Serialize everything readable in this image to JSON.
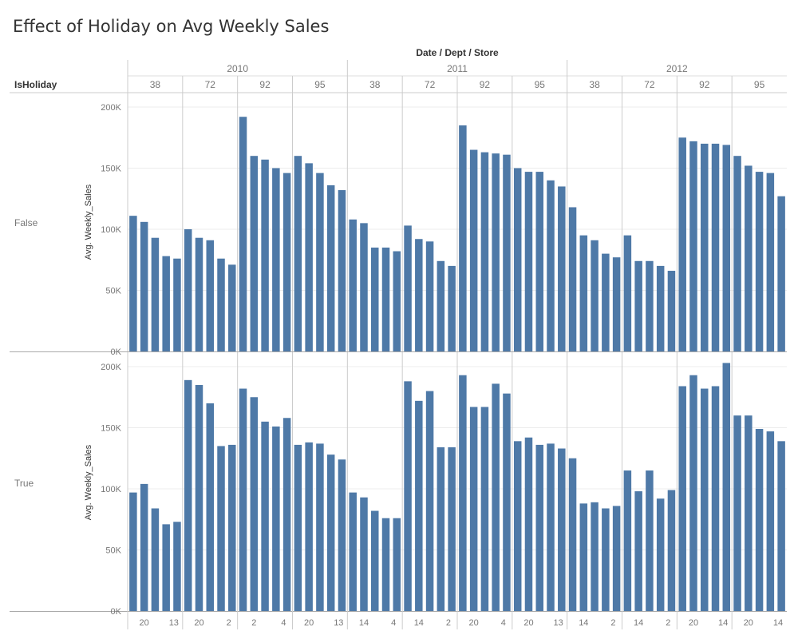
{
  "chart_data": {
    "type": "bar",
    "title": "Effect of Holiday on Avg Weekly Sales",
    "column_header": "Date / Dept / Store",
    "row_header": "IsHoliday",
    "ylabel": "Avg. Weekly_Sales",
    "ylim": [
      0,
      200000
    ],
    "y_ticks": [
      "0K",
      "50K",
      "100K",
      "150K",
      "200K"
    ],
    "bar_color": "#4e79a7",
    "years": [
      {
        "year": "2010",
        "depts": [
          "38",
          "72",
          "92",
          "95"
        ]
      },
      {
        "year": "2011",
        "depts": [
          "38",
          "72",
          "92",
          "95"
        ]
      },
      {
        "year": "2012",
        "depts": [
          "38",
          "72",
          "92",
          "95"
        ]
      }
    ],
    "x_tick_labels": [
      [
        "20",
        "13"
      ],
      [
        "20",
        "2"
      ],
      [
        "2",
        "4"
      ],
      [
        "20",
        "13"
      ],
      [
        "14",
        "4"
      ],
      [
        "14",
        "2"
      ],
      [
        "20",
        "4"
      ],
      [
        "20",
        "13"
      ],
      [
        "14",
        "2"
      ],
      [
        "14",
        "2"
      ],
      [
        "20",
        "14"
      ],
      [
        "20",
        "14"
      ]
    ],
    "series": [
      {
        "name": "False",
        "groups": [
          [
            111000,
            106000,
            93000,
            78000,
            76000
          ],
          [
            100000,
            93000,
            91000,
            76000,
            71000
          ],
          [
            192000,
            160000,
            157000,
            150000,
            146000
          ],
          [
            160000,
            154000,
            146000,
            136000,
            132000
          ],
          [
            108000,
            105000,
            85000,
            85000,
            82000
          ],
          [
            103000,
            92000,
            90000,
            74000,
            70000
          ],
          [
            185000,
            165000,
            163000,
            162000,
            161000
          ],
          [
            150000,
            147000,
            147000,
            140000,
            135000
          ],
          [
            118000,
            95000,
            91000,
            80000,
            77000
          ],
          [
            95000,
            74000,
            74000,
            70000,
            66000
          ],
          [
            175000,
            172000,
            170000,
            170000,
            169000
          ],
          [
            160000,
            152000,
            147000,
            146000,
            127000
          ]
        ]
      },
      {
        "name": "True",
        "groups": [
          [
            97000,
            104000,
            84000,
            71000,
            73000
          ],
          [
            189000,
            185000,
            170000,
            135000,
            136000
          ],
          [
            182000,
            175000,
            155000,
            151000,
            158000
          ],
          [
            136000,
            138000,
            137000,
            128000,
            124000
          ],
          [
            97000,
            93000,
            82000,
            76000,
            76000
          ],
          [
            188000,
            172000,
            180000,
            134000,
            134000
          ],
          [
            193000,
            167000,
            167000,
            186000,
            178000
          ],
          [
            139000,
            142000,
            136000,
            137000,
            133000
          ],
          [
            125000,
            88000,
            89000,
            84000,
            86000
          ],
          [
            115000,
            98000,
            115000,
            92000,
            99000
          ],
          [
            184000,
            193000,
            182000,
            184000,
            203000
          ],
          [
            160000,
            160000,
            149000,
            147000,
            139000
          ]
        ]
      }
    ]
  }
}
